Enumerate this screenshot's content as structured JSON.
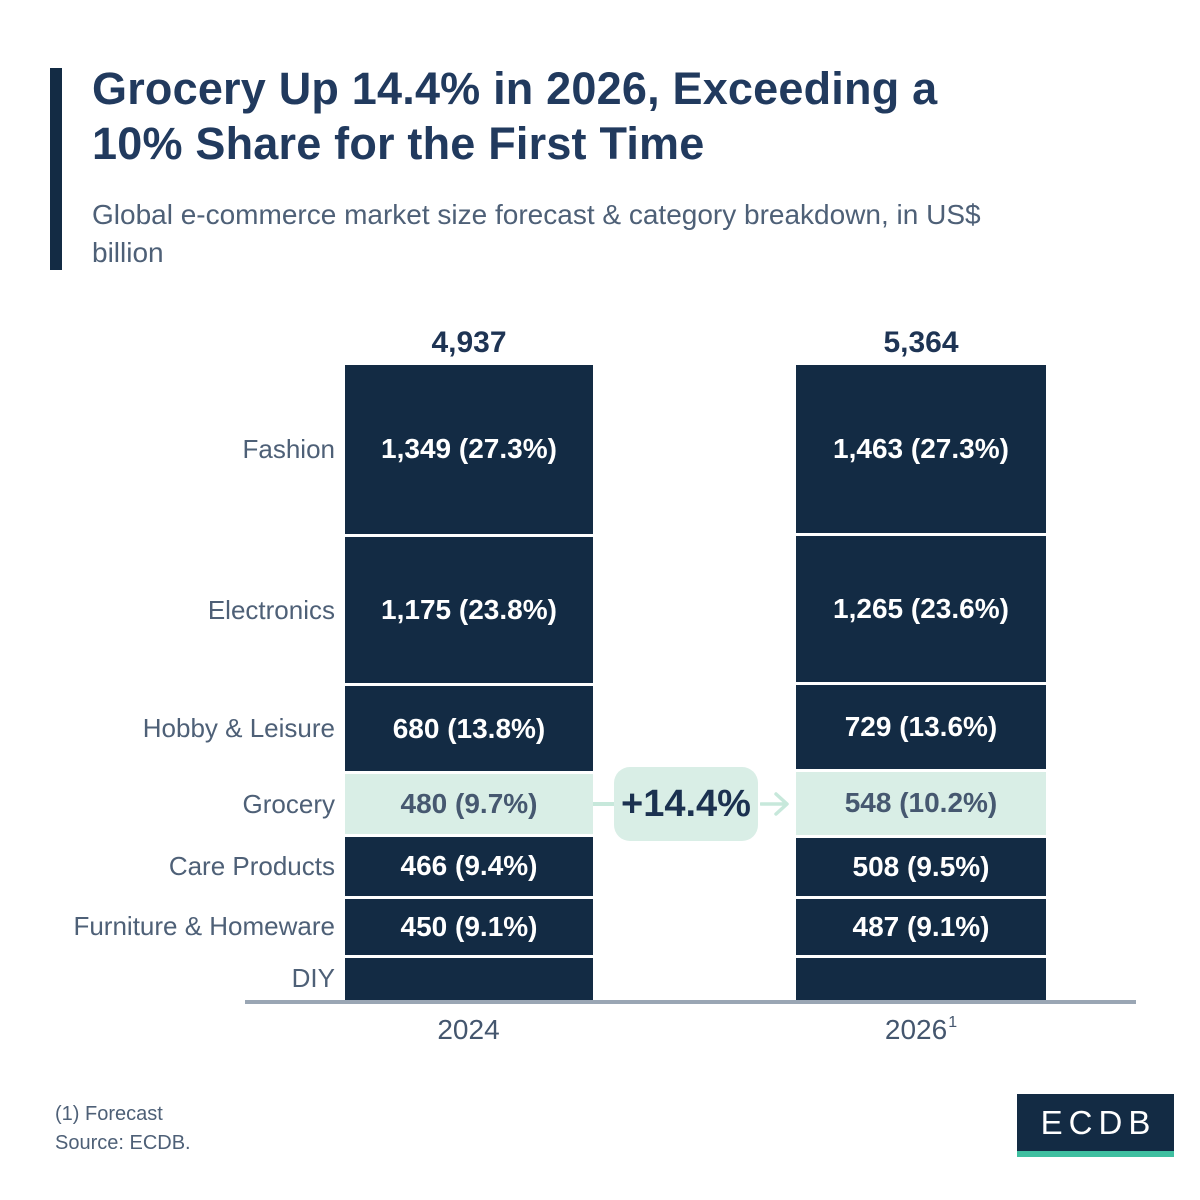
{
  "header": {
    "title_line1": "Grocery Up 14.4% in 2026, Exceeding a",
    "title_line2": "10% Share for the First Time",
    "subtitle_line1": "Global e-commerce market size forecast & category breakdown, in US$",
    "subtitle_line2": "billion"
  },
  "chart_data": {
    "type": "bar",
    "subtype": "stacked_columns_equal_height",
    "unit": "US$ billion",
    "title": "Grocery Up 14.4% in 2026, Exceeding a 10% Share for the First Time",
    "subtitle": "Global e-commerce market size forecast & category breakdown, in US$ billion",
    "categories": [
      "Fashion",
      "Electronics",
      "Hobby & Leisure",
      "Grocery",
      "Care Products",
      "Furniture & Homeware",
      "DIY"
    ],
    "highlight_category": "Grocery",
    "grid": false,
    "legend_position": "left-category-labels",
    "annotation": {
      "text": "+14.4%",
      "meaning": "Grocery growth from 2024 to 2026"
    },
    "columns": [
      {
        "year_label": "2024",
        "year_sup": "",
        "total": 4937,
        "total_label": "4,937",
        "segments": [
          {
            "category": "Fashion",
            "value": 1349,
            "share_pct": 27.3,
            "label": "1,349 (27.3%)"
          },
          {
            "category": "Electronics",
            "value": 1175,
            "share_pct": 23.8,
            "label": "1,175 (23.8%)"
          },
          {
            "category": "Hobby & Leisure",
            "value": 680,
            "share_pct": 13.8,
            "label": "680 (13.8%)"
          },
          {
            "category": "Grocery",
            "value": 480,
            "share_pct": 9.7,
            "label": "480 (9.7%)",
            "highlight": true
          },
          {
            "category": "Care Products",
            "value": 466,
            "share_pct": 9.4,
            "label": "466 (9.4%)"
          },
          {
            "category": "Furniture & Homeware",
            "value": 450,
            "share_pct": 9.1,
            "label": "450 (9.1%)"
          },
          {
            "category": "DIY",
            "value": 337,
            "share_pct": 6.8,
            "label": "",
            "estimated": true
          }
        ]
      },
      {
        "year_label": "2026",
        "year_sup": "1",
        "total": 5364,
        "total_label": "5,364",
        "segments": [
          {
            "category": "Fashion",
            "value": 1463,
            "share_pct": 27.3,
            "label": "1,463 (27.3%)"
          },
          {
            "category": "Electronics",
            "value": 1265,
            "share_pct": 23.6,
            "label": "1,265 (23.6%)"
          },
          {
            "category": "Hobby & Leisure",
            "value": 729,
            "share_pct": 13.6,
            "label": "729 (13.6%)"
          },
          {
            "category": "Grocery",
            "value": 548,
            "share_pct": 10.2,
            "label": "548 (10.2%)",
            "highlight": true
          },
          {
            "category": "Care Products",
            "value": 508,
            "share_pct": 9.5,
            "label": "508 (9.5%)"
          },
          {
            "category": "Furniture & Homeware",
            "value": 487,
            "share_pct": 9.1,
            "label": "487 (9.1%)"
          },
          {
            "category": "DIY",
            "value": 364,
            "share_pct": 6.8,
            "label": "",
            "estimated": true
          }
        ]
      }
    ]
  },
  "footnote": {
    "line1": "(1) Forecast",
    "line2": "Source: ECDB."
  },
  "logo": {
    "text": "ECDB"
  },
  "colors": {
    "navy": "#132B44",
    "mint": "#D9EEE6",
    "title_navy": "#213A5E",
    "slate": "#4E6077",
    "axis_gray": "#9AA6B4",
    "teal": "#3FBFA0",
    "value_on_mint": "#465870",
    "white": "#FFFFFF"
  }
}
